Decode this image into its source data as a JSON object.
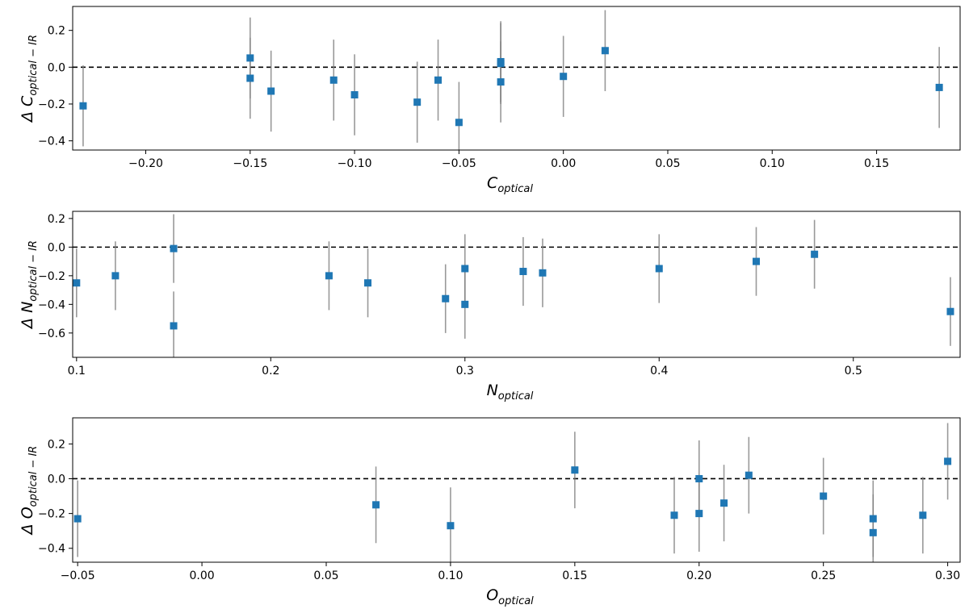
{
  "chart_data": [
    {
      "type": "scatter",
      "xlabel": "C",
      "xlabel_sub": "optical",
      "ylabel_prefix": "Δ C",
      "ylabel_sub": "optical − IR",
      "xlim": [
        -0.235,
        0.19
      ],
      "ylim": [
        -0.45,
        0.33
      ],
      "xticks": [
        -0.2,
        -0.15,
        -0.1,
        -0.05,
        0.0,
        0.05,
        0.1,
        0.15
      ],
      "xtick_labels": [
        "−0.20",
        "−0.15",
        "−0.10",
        "−0.05",
        "0.00",
        "0.05",
        "0.10",
        "0.15"
      ],
      "yticks": [
        -0.4,
        -0.2,
        0.0,
        0.2
      ],
      "ytick_labels": [
        "−0.4",
        "−0.2",
        "0.0",
        "0.2"
      ],
      "reference_line": 0,
      "error": 0.22,
      "points": [
        {
          "x": -0.23,
          "y": -0.21
        },
        {
          "x": -0.15,
          "y": 0.05
        },
        {
          "x": -0.15,
          "y": -0.06
        },
        {
          "x": -0.14,
          "y": -0.13
        },
        {
          "x": -0.11,
          "y": -0.07
        },
        {
          "x": -0.1,
          "y": -0.15
        },
        {
          "x": -0.07,
          "y": -0.19
        },
        {
          "x": -0.06,
          "y": -0.07
        },
        {
          "x": -0.05,
          "y": -0.3
        },
        {
          "x": -0.03,
          "y": 0.03
        },
        {
          "x": -0.03,
          "y": 0.02
        },
        {
          "x": -0.03,
          "y": -0.08
        },
        {
          "x": 0.0,
          "y": -0.05
        },
        {
          "x": 0.02,
          "y": 0.09
        },
        {
          "x": 0.18,
          "y": -0.11
        }
      ]
    },
    {
      "type": "scatter",
      "xlabel": "N",
      "xlabel_sub": "optical",
      "ylabel_prefix": "Δ N",
      "ylabel_sub": "optical − IR",
      "xlim": [
        0.098,
        0.555
      ],
      "ylim": [
        -0.77,
        0.25
      ],
      "xticks": [
        0.1,
        0.2,
        0.3,
        0.4,
        0.5
      ],
      "xtick_labels": [
        "0.1",
        "0.2",
        "0.3",
        "0.4",
        "0.5"
      ],
      "yticks": [
        -0.6,
        -0.4,
        -0.2,
        0.0,
        0.2
      ],
      "ytick_labels": [
        "−0.6",
        "−0.4",
        "−0.2",
        "0.0",
        "0.2"
      ],
      "reference_line": 0,
      "error": 0.24,
      "points": [
        {
          "x": 0.1,
          "y": -0.25
        },
        {
          "x": 0.12,
          "y": -0.2
        },
        {
          "x": 0.15,
          "y": -0.01
        },
        {
          "x": 0.15,
          "y": -0.55
        },
        {
          "x": 0.23,
          "y": -0.2
        },
        {
          "x": 0.25,
          "y": -0.25
        },
        {
          "x": 0.29,
          "y": -0.36
        },
        {
          "x": 0.3,
          "y": -0.15
        },
        {
          "x": 0.3,
          "y": -0.4
        },
        {
          "x": 0.33,
          "y": -0.17
        },
        {
          "x": 0.34,
          "y": -0.18
        },
        {
          "x": 0.4,
          "y": -0.15
        },
        {
          "x": 0.45,
          "y": -0.1
        },
        {
          "x": 0.48,
          "y": -0.05
        },
        {
          "x": 0.55,
          "y": -0.45
        }
      ]
    },
    {
      "type": "scatter",
      "xlabel": "O",
      "xlabel_sub": "optical",
      "ylabel_prefix": "Δ O",
      "ylabel_sub": "optical − IR",
      "xlim": [
        -0.052,
        0.305
      ],
      "ylim": [
        -0.48,
        0.35
      ],
      "xticks": [
        -0.05,
        0.0,
        0.05,
        0.1,
        0.15,
        0.2,
        0.25,
        0.3
      ],
      "xtick_labels": [
        "−0.05",
        "0.00",
        "0.05",
        "0.10",
        "0.15",
        "0.20",
        "0.25",
        "0.30"
      ],
      "yticks": [
        -0.4,
        -0.2,
        0.0,
        0.2
      ],
      "ytick_labels": [
        "−0.4",
        "−0.2",
        "0.0",
        "0.2"
      ],
      "reference_line": 0,
      "error": 0.22,
      "points": [
        {
          "x": -0.05,
          "y": -0.23
        },
        {
          "x": 0.07,
          "y": -0.15
        },
        {
          "x": 0.1,
          "y": -0.27
        },
        {
          "x": 0.15,
          "y": 0.05
        },
        {
          "x": 0.19,
          "y": -0.21
        },
        {
          "x": 0.2,
          "y": 0.0
        },
        {
          "x": 0.2,
          "y": -0.2
        },
        {
          "x": 0.21,
          "y": -0.14
        },
        {
          "x": 0.22,
          "y": 0.02
        },
        {
          "x": 0.25,
          "y": -0.1
        },
        {
          "x": 0.27,
          "y": -0.23
        },
        {
          "x": 0.27,
          "y": -0.31
        },
        {
          "x": 0.29,
          "y": -0.21
        },
        {
          "x": 0.3,
          "y": 0.1
        }
      ]
    }
  ],
  "colors": {
    "marker": "#1f77b4",
    "errorbar": "#808080",
    "reference": "#000000",
    "axes": "#000000"
  }
}
